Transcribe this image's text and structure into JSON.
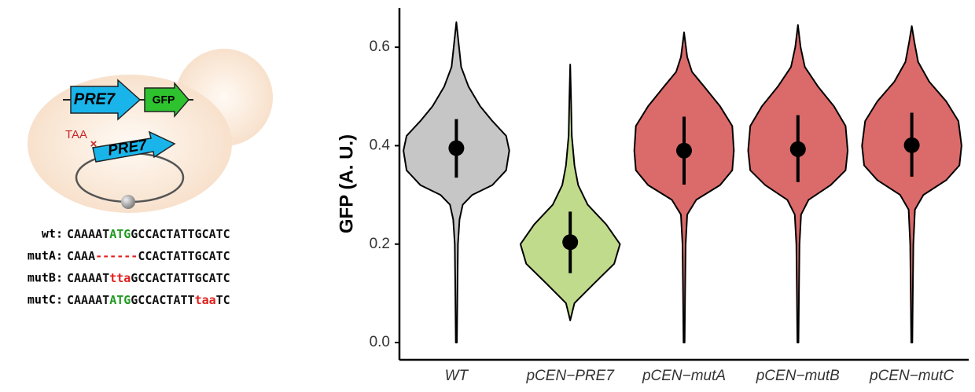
{
  "diagram": {
    "gene_label": "PRE7",
    "reporter_label": "GFP",
    "stop_label": "TAA",
    "plasmid_label": "PRE7",
    "sequences": [
      {
        "name": "wt:",
        "parts": [
          {
            "text": "CAAAAT",
            "color": "#111"
          },
          {
            "text": "ATG",
            "color": "#1e9a1e"
          },
          {
            "text": "GCCACTATTGCATC",
            "color": "#111"
          }
        ]
      },
      {
        "name": "mutA:",
        "parts": [
          {
            "text": "CAAA",
            "color": "#111"
          },
          {
            "text": "------",
            "color": "#e0201c"
          },
          {
            "text": "CCACTATTGCATC",
            "color": "#111"
          }
        ]
      },
      {
        "name": "mutB:",
        "parts": [
          {
            "text": "CAAAAT",
            "color": "#111"
          },
          {
            "text": "tta",
            "color": "#e0201c"
          },
          {
            "text": "GCCACTATTGCATC",
            "color": "#111"
          }
        ]
      },
      {
        "name": "mutC:",
        "parts": [
          {
            "text": "CAAAAT",
            "color": "#111"
          },
          {
            "text": "ATG",
            "color": "#1e9a1e"
          },
          {
            "text": "GCCACTATT",
            "color": "#111"
          },
          {
            "text": "taa",
            "color": "#e0201c"
          },
          {
            "text": "TC",
            "color": "#111"
          }
        ]
      }
    ]
  },
  "chart_data": {
    "type": "violin",
    "y_label": "GFP (A. U.)",
    "categories": [
      "WT",
      "pCEN−PRE7",
      "pCEN−mutA",
      "pCEN−mutB",
      "pCEN−mutC"
    ],
    "colors": [
      "#c6c6c6",
      "#c1db8c",
      "#db6a6a",
      "#db6a6a",
      "#db6a6a"
    ],
    "means": [
      0.395,
      0.204,
      0.39,
      0.393,
      0.401
    ],
    "lower": [
      0.335,
      0.141,
      0.321,
      0.326,
      0.337
    ],
    "upper": [
      0.454,
      0.266,
      0.459,
      0.462,
      0.467
    ],
    "violins": [
      {
        "y": [
          0,
          0.1,
          0.2,
          0.25,
          0.28,
          0.3,
          0.32,
          0.35,
          0.39,
          0.42,
          0.45,
          0.48,
          0.52,
          0.56,
          0.6,
          0.651
        ],
        "w": [
          0.01,
          0.02,
          0.03,
          0.06,
          0.12,
          0.3,
          0.68,
          0.94,
          1,
          0.94,
          0.68,
          0.45,
          0.23,
          0.09,
          0.05,
          0
        ]
      },
      {
        "y": [
          0.045,
          0.08,
          0.12,
          0.16,
          0.2,
          0.24,
          0.28,
          0.32,
          0.36,
          0.42,
          0.5,
          0.565
        ],
        "w": [
          0,
          0.08,
          0.45,
          0.83,
          0.94,
          0.68,
          0.33,
          0.15,
          0.08,
          0.03,
          0.015,
          0
        ]
      },
      {
        "y": [
          0,
          0.1,
          0.2,
          0.26,
          0.29,
          0.32,
          0.35,
          0.39,
          0.44,
          0.48,
          0.52,
          0.55,
          0.58,
          0.63
        ],
        "w": [
          0.01,
          0.02,
          0.03,
          0.06,
          0.23,
          0.68,
          0.91,
          0.94,
          0.91,
          0.68,
          0.38,
          0.15,
          0.06,
          0
        ]
      },
      {
        "y": [
          0,
          0.1,
          0.2,
          0.26,
          0.29,
          0.32,
          0.35,
          0.39,
          0.44,
          0.48,
          0.52,
          0.56,
          0.6,
          0.645
        ],
        "w": [
          0.01,
          0.02,
          0.03,
          0.06,
          0.2,
          0.62,
          0.9,
          0.94,
          0.9,
          0.68,
          0.38,
          0.13,
          0.05,
          0
        ]
      },
      {
        "y": [
          0,
          0.1,
          0.2,
          0.27,
          0.3,
          0.33,
          0.36,
          0.4,
          0.45,
          0.49,
          0.53,
          0.57,
          0.61,
          0.643
        ],
        "w": [
          0.01,
          0.02,
          0.03,
          0.06,
          0.22,
          0.65,
          0.9,
          0.94,
          0.88,
          0.65,
          0.33,
          0.12,
          0.05,
          0
        ]
      }
    ],
    "ylim": [
      -0.035,
      0.68
    ],
    "yticks": [
      {
        "value": 0,
        "label": "0.0"
      },
      0.2,
      0.4,
      0.6
    ]
  }
}
